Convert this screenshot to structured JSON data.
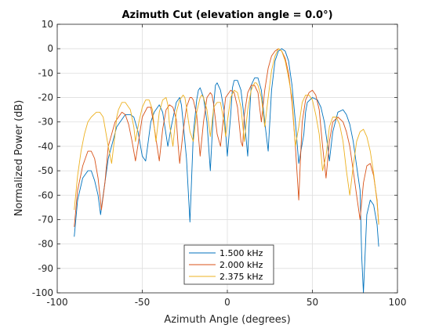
{
  "chart_data": {
    "type": "line",
    "title": "Azimuth Cut (elevation angle = 0.0°)",
    "xlabel": "Azimuth Angle (degrees)",
    "ylabel": "Normalized Power (dB)",
    "xlim": [
      -100,
      100
    ],
    "ylim": [
      -100,
      10
    ],
    "xticks": [
      -100,
      -50,
      0,
      50,
      100
    ],
    "yticks": [
      10,
      0,
      -10,
      -20,
      -30,
      -40,
      -50,
      -60,
      -70,
      -80,
      -90,
      -100
    ],
    "grid": true,
    "legend_position": "bottom-center",
    "series": [
      {
        "name": "1.500 kHz",
        "color": "#0072BD",
        "x": [
          -90,
          -88,
          -85,
          -82,
          -80,
          -78,
          -76,
          -74.5,
          -73,
          -70,
          -65,
          -60,
          -57,
          -55,
          -52.5,
          -50,
          -48,
          -46.5,
          -45,
          -43,
          -40,
          -38,
          -36.5,
          -35,
          -33,
          -30,
          -28,
          -27,
          -26,
          -24,
          -22,
          -20,
          -18,
          -17,
          -16,
          -14,
          -12,
          -10,
          -8,
          -7,
          -6,
          -4,
          -2,
          0,
          2,
          3,
          4,
          6,
          8,
          10,
          12,
          13,
          14,
          16,
          18,
          20,
          22,
          24,
          26,
          28,
          30,
          32,
          34,
          36,
          38,
          40,
          42,
          45,
          46,
          47,
          50,
          53,
          55,
          57,
          59,
          60,
          62,
          65,
          68,
          70,
          72,
          74,
          76,
          78,
          79,
          80,
          82,
          84,
          86,
          88,
          89
        ],
        "values": [
          -77,
          -62,
          -53,
          -50,
          -50,
          -54,
          -60,
          -68,
          -60,
          -45,
          -32,
          -27,
          -27,
          -28,
          -34,
          -44,
          -46,
          -38,
          -30,
          -26,
          -23,
          -26,
          -33,
          -40,
          -32,
          -22,
          -20,
          -23,
          -30,
          -45,
          -71,
          -35,
          -21,
          -17,
          -16,
          -20,
          -30,
          -50,
          -23,
          -15,
          -14,
          -17,
          -25,
          -44,
          -27,
          -16,
          -13,
          -13,
          -17,
          -29,
          -44,
          -28,
          -15,
          -12,
          -12,
          -17,
          -30,
          -42,
          -17,
          -5,
          -1,
          0,
          -1,
          -5,
          -15,
          -30,
          -47,
          -35,
          -26,
          -22,
          -20,
          -21,
          -24,
          -30,
          -40,
          -46,
          -34,
          -26,
          -25,
          -27,
          -31,
          -38,
          -48,
          -58,
          -85,
          -100,
          -68,
          -62,
          -64,
          -72,
          -81
        ]
      },
      {
        "name": "2.000 kHz",
        "color": "#D95319",
        "x": [
          -90,
          -88,
          -85,
          -82,
          -80,
          -78,
          -76,
          -74,
          -72,
          -70,
          -66,
          -62,
          -60,
          -58,
          -56,
          -54,
          -52,
          -50,
          -47,
          -45,
          -43,
          -40,
          -38,
          -36,
          -34,
          -32,
          -30,
          -29,
          -28,
          -26,
          -24,
          -22,
          -21,
          -20,
          -18,
          -16,
          -14,
          -12,
          -10,
          -9,
          -8,
          -6,
          -4,
          -2,
          -1,
          0,
          2,
          4,
          6,
          8,
          9,
          10,
          12,
          14,
          16,
          18,
          19,
          20,
          22,
          24,
          26,
          28,
          30,
          32,
          34,
          36,
          38,
          40,
          42,
          43,
          44,
          46,
          48,
          50,
          52,
          54,
          56,
          58,
          60,
          62,
          65,
          68,
          70,
          72,
          74,
          76,
          78,
          80,
          82,
          84,
          86,
          88,
          89
        ],
        "values": [
          -73,
          -58,
          -48,
          -42,
          -42,
          -45,
          -53,
          -66,
          -55,
          -40,
          -30,
          -26,
          -27,
          -31,
          -38,
          -46,
          -37,
          -28,
          -24,
          -24,
          -32,
          -46,
          -33,
          -25,
          -23,
          -24,
          -29,
          -39,
          -47,
          -34,
          -24,
          -20,
          -20,
          -21,
          -27,
          -44,
          -30,
          -20,
          -18,
          -19,
          -23,
          -35,
          -40,
          -26,
          -20,
          -19,
          -17,
          -18,
          -24,
          -38,
          -40,
          -27,
          -18,
          -15,
          -15,
          -18,
          -24,
          -30,
          -17,
          -8,
          -3,
          -1,
          0,
          -1,
          -4,
          -10,
          -22,
          -40,
          -62,
          -45,
          -30,
          -21,
          -18,
          -17,
          -19,
          -25,
          -40,
          -53,
          -38,
          -30,
          -28,
          -30,
          -34,
          -40,
          -50,
          -60,
          -70,
          -55,
          -48,
          -47,
          -52,
          -62,
          -72
        ]
      },
      {
        "name": "2.375 kHz",
        "color": "#EDB120",
        "x": [
          -90,
          -88,
          -86,
          -84,
          -82,
          -80,
          -77,
          -75,
          -73,
          -72,
          -70,
          -68,
          -66,
          -65,
          -64,
          -62,
          -60,
          -57,
          -55,
          -54,
          -52,
          -50,
          -48,
          -46,
          -44,
          -43,
          -42,
          -40,
          -38,
          -36,
          -35,
          -34,
          -32,
          -30,
          -28,
          -26,
          -25,
          -24,
          -22,
          -20,
          -18,
          -16,
          -15,
          -14,
          -12,
          -10,
          -9,
          -8,
          -6,
          -4,
          -2,
          -1,
          0,
          2,
          4,
          6,
          7,
          8,
          10,
          12,
          14,
          16,
          17,
          18,
          20,
          22,
          24,
          26,
          28,
          30,
          32,
          34,
          36,
          38,
          39,
          40,
          42,
          44,
          46,
          48,
          50,
          52,
          54,
          56,
          58,
          60,
          62,
          64,
          66,
          68,
          70,
          72,
          74,
          76,
          78,
          80,
          82,
          84,
          86,
          88,
          89
        ],
        "values": [
          -66,
          -52,
          -42,
          -35,
          -30,
          -28,
          -26,
          -26,
          -28,
          -32,
          -40,
          -47,
          -35,
          -28,
          -25,
          -22,
          -22,
          -25,
          -32,
          -38,
          -30,
          -24,
          -21,
          -21,
          -25,
          -32,
          -38,
          -26,
          -21,
          -20,
          -23,
          -31,
          -40,
          -26,
          -21,
          -19,
          -20,
          -24,
          -34,
          -38,
          -26,
          -20,
          -19,
          -20,
          -25,
          -36,
          -30,
          -24,
          -22,
          -22,
          -30,
          -36,
          -30,
          -20,
          -17,
          -18,
          -21,
          -24,
          -38,
          -25,
          -17,
          -14,
          -14,
          -15,
          -20,
          -32,
          -20,
          -9,
          -3,
          0,
          -1,
          -5,
          -12,
          -20,
          -30,
          -40,
          -32,
          -22,
          -19,
          -19,
          -21,
          -27,
          -35,
          -50,
          -44,
          -32,
          -28,
          -28,
          -31,
          -38,
          -50,
          -60,
          -48,
          -38,
          -34,
          -33,
          -36,
          -42,
          -51,
          -63,
          -72
        ]
      }
    ]
  }
}
